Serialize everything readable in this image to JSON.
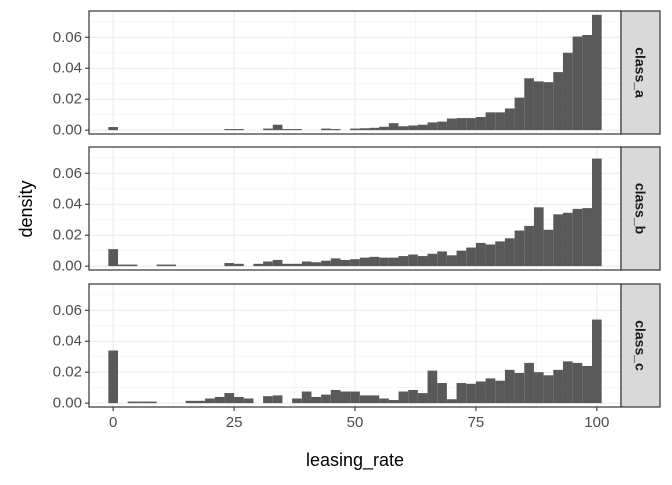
{
  "chart_data": {
    "type": "bar",
    "subtype": "faceted-histogram",
    "xlabel": "leasing_rate",
    "ylabel": "density",
    "xlim": [
      -5,
      105
    ],
    "ylim": [
      -0.0025,
      0.077
    ],
    "bin_width": 2,
    "x_ticks": [
      0,
      25,
      50,
      75,
      100
    ],
    "x_tick_labels": [
      "0",
      "25",
      "50",
      "75",
      "100"
    ],
    "y_ticks": [
      0,
      0.02,
      0.04,
      0.06
    ],
    "y_tick_labels": [
      "0.00",
      "0.02",
      "0.04",
      "0.06"
    ],
    "grid": true,
    "legend": "none",
    "bar_color": "#595959",
    "bin_centers": [
      0,
      2,
      4,
      6,
      8,
      10,
      12,
      14,
      16,
      18,
      20,
      22,
      24,
      26,
      28,
      30,
      32,
      34,
      36,
      38,
      40,
      42,
      44,
      46,
      48,
      50,
      52,
      54,
      56,
      58,
      60,
      62,
      64,
      66,
      68,
      70,
      72,
      74,
      76,
      78,
      80,
      82,
      84,
      86,
      88,
      90,
      92,
      94,
      96,
      98,
      100
    ],
    "panels": [
      {
        "strip": "class_a",
        "values": [
          0.002,
          0,
          0,
          0,
          0,
          0,
          0,
          0,
          0,
          0,
          0,
          0,
          0.0007,
          0.0007,
          0,
          0,
          0.001,
          0.0035,
          0.0007,
          0.0007,
          0,
          0,
          0.001,
          0.0007,
          0,
          0.001,
          0.0012,
          0.0015,
          0.0022,
          0.0045,
          0.0025,
          0.003,
          0.0035,
          0.005,
          0.0055,
          0.0075,
          0.0078,
          0.0078,
          0.0085,
          0.0115,
          0.0115,
          0.014,
          0.021,
          0.0335,
          0.0315,
          0.031,
          0.0375,
          0.05,
          0.0605,
          0.0615,
          0.0745
        ]
      },
      {
        "strip": "class_b",
        "values": [
          0.011,
          0.001,
          0.001,
          0,
          0,
          0.001,
          0.001,
          0,
          0,
          0,
          0,
          0,
          0.002,
          0.0015,
          0,
          0.0015,
          0.003,
          0.004,
          0.0015,
          0.0015,
          0.003,
          0.0025,
          0.0035,
          0.005,
          0.004,
          0.0045,
          0.0055,
          0.006,
          0.0055,
          0.0055,
          0.0065,
          0.0075,
          0.0065,
          0.008,
          0.0095,
          0.007,
          0.01,
          0.012,
          0.015,
          0.014,
          0.016,
          0.018,
          0.023,
          0.026,
          0.038,
          0.0235,
          0.0335,
          0.0345,
          0.037,
          0.0375,
          0.0695
        ]
      },
      {
        "strip": "class_c",
        "values": [
          0.034,
          0,
          0.001,
          0.001,
          0.001,
          0,
          0,
          0,
          0.0015,
          0.0015,
          0.003,
          0.004,
          0.0065,
          0.004,
          0.003,
          0,
          0.0045,
          0.005,
          0,
          0.003,
          0.0075,
          0.004,
          0.0055,
          0.0085,
          0.0075,
          0.0075,
          0.005,
          0.005,
          0.003,
          0.002,
          0.0075,
          0.0085,
          0.0065,
          0.021,
          0.013,
          0.0025,
          0.013,
          0.0125,
          0.014,
          0.016,
          0.0145,
          0.0215,
          0.0195,
          0.026,
          0.02,
          0.018,
          0.0215,
          0.027,
          0.026,
          0.024,
          0.054
        ]
      }
    ]
  }
}
